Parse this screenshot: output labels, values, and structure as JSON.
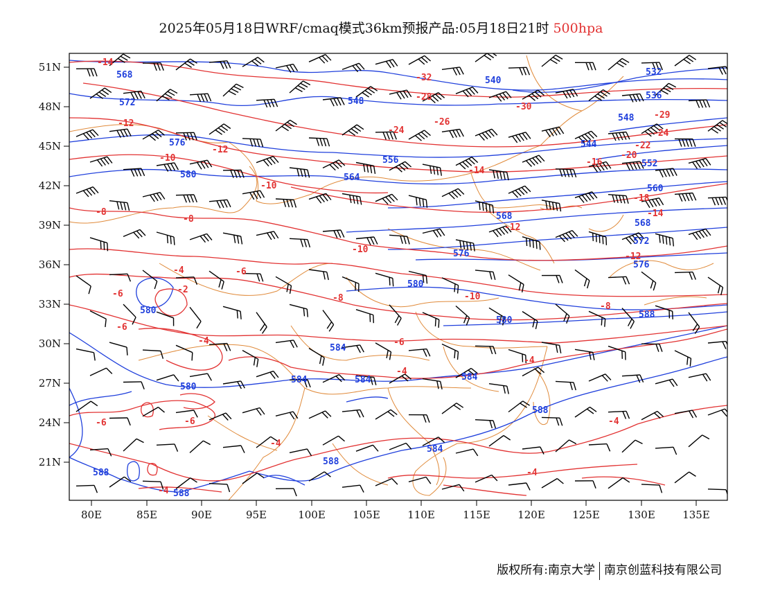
{
  "title": {
    "text": "2025年05月18日WRF/cmaq模式36km预报产品:05月18日21时",
    "level": "500hpa",
    "level_color": "#e23232"
  },
  "axes": {
    "lon_labels": [
      "80E",
      "85E",
      "90E",
      "95E",
      "100E",
      "105E",
      "110E",
      "115E",
      "120E",
      "125E",
      "130E",
      "135E"
    ],
    "lat_labels": [
      "51N",
      "48N",
      "45N",
      "42N",
      "39N",
      "36N",
      "33N",
      "30N",
      "27N",
      "24N",
      "21N"
    ]
  },
  "colors": {
    "height_contour": "#1f3fdc",
    "temp_contour": "#e23232",
    "borders": "#e08a3a",
    "wind_barbs": "#000000"
  },
  "height_labels": [
    "568",
    "572",
    "576",
    "580",
    "540",
    "548",
    "556",
    "564",
    "568",
    "576",
    "580",
    "584",
    "588",
    "532",
    "536",
    "548",
    "544",
    "552",
    "560",
    "568",
    "572",
    "576",
    "580",
    "584",
    "588",
    "580",
    "584",
    "584",
    "588",
    "588",
    "584",
    "588",
    "580"
  ],
  "temp_labels": [
    "-14",
    "-12",
    "-10",
    "-12",
    "-14",
    "-16",
    "-20",
    "-22",
    "-24",
    "-26",
    "-28",
    "-30",
    "-32",
    "-29",
    "-24",
    "-8",
    "-10",
    "-12",
    "-18",
    "-14",
    "-12",
    "-10",
    "-8",
    "-6",
    "-4",
    "-2",
    "-6",
    "-4",
    "-6",
    "-8",
    "-6",
    "-4",
    "-6",
    "-10",
    "-8",
    "-4",
    "-4",
    "-4",
    "-6",
    "-4",
    "-4"
  ],
  "footer": {
    "left": "版权所有:南京大学",
    "right": "南京创蓝科技有限公司"
  }
}
